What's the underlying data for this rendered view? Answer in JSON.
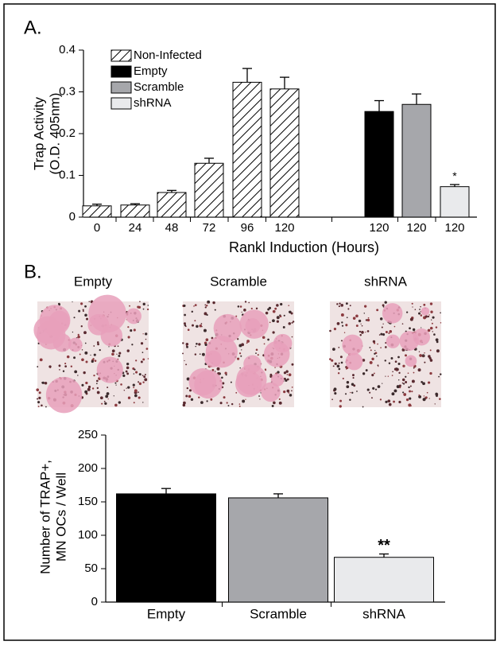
{
  "chart_data": [
    {
      "type": "bar",
      "panel_label": "A.",
      "ylabel": [
        "Trap Activity",
        "(O.D. 405nm)"
      ],
      "xlabel": "Rankl Induction (Hours)",
      "categories": [
        "0",
        "24",
        "48",
        "72",
        "96",
        "120",
        "120",
        "120",
        "120"
      ],
      "series": [
        {
          "name": "Non-Infected",
          "color": "#ffffff",
          "hatch": true,
          "values": [
            0.027,
            0.029,
            0.059,
            0.129,
            0.323,
            0.307,
            null,
            null,
            null
          ],
          "errors": [
            0.004,
            0.003,
            0.005,
            0.012,
            0.033,
            0.028,
            null,
            null,
            null
          ]
        },
        {
          "name": "Empty",
          "color": "#000000",
          "values": [
            null,
            null,
            null,
            null,
            null,
            null,
            0.253,
            null,
            null
          ],
          "errors": [
            null,
            null,
            null,
            null,
            null,
            null,
            0.026,
            null,
            null
          ]
        },
        {
          "name": "Scramble",
          "color": "#a6a7ab",
          "values": [
            null,
            null,
            null,
            null,
            null,
            null,
            null,
            0.27,
            null
          ],
          "errors": [
            null,
            null,
            null,
            null,
            null,
            null,
            null,
            0.025,
            null
          ]
        },
        {
          "name": "shRNA",
          "color": "#e9eaec",
          "values": [
            null,
            null,
            null,
            null,
            null,
            null,
            null,
            null,
            0.073
          ],
          "errors": [
            null,
            null,
            null,
            null,
            null,
            null,
            null,
            null,
            0.005
          ],
          "annotations": [
            null,
            null,
            null,
            null,
            null,
            null,
            null,
            null,
            "*"
          ]
        }
      ],
      "ylim": [
        0,
        0.4
      ],
      "yticks": [
        0,
        0.1,
        0.2,
        0.3,
        0.4
      ],
      "legend": "top-left"
    },
    {
      "type": "bar",
      "panel_label": "B.",
      "ylabel": [
        "Number of TRAP+,",
        "MN OCs / Well"
      ],
      "categories": [
        "Empty",
        "Scramble",
        "shRNA"
      ],
      "values": [
        162,
        156,
        67
      ],
      "errors": [
        8,
        6,
        5
      ],
      "colors": [
        "#000000",
        "#a6a7ab",
        "#e9eaec"
      ],
      "annotations": [
        null,
        null,
        "**"
      ],
      "ylim": [
        0,
        250
      ],
      "yticks": [
        0,
        50,
        100,
        150,
        200,
        250
      ]
    }
  ],
  "micrographs": {
    "captions": [
      "Empty",
      "Scramble",
      "shRNA"
    ]
  }
}
